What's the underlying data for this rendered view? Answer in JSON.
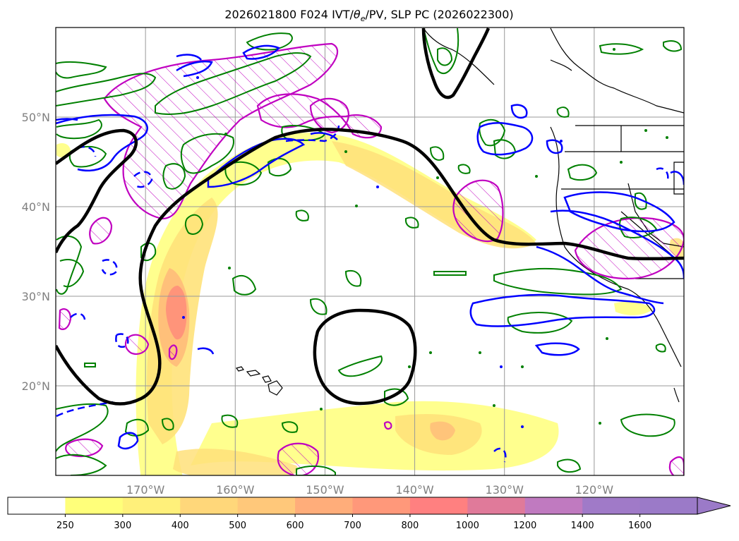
{
  "title_main": "2026021800 F024 IVT/",
  "title_theta": "θ",
  "title_sub": "e",
  "title_rest": "/PV, SLP PC (2026022300)",
  "lon_ticks": [
    {
      "lon": -170,
      "label": "170°W"
    },
    {
      "lon": -160,
      "label": "160°W"
    },
    {
      "lon": -150,
      "label": "150°W"
    },
    {
      "lon": -140,
      "label": "140°W"
    },
    {
      "lon": -130,
      "label": "130°W"
    },
    {
      "lon": -120,
      "label": "120°W"
    }
  ],
  "lat_ticks": [
    {
      "lat": 50,
      "label": "50°N"
    },
    {
      "lat": 40,
      "label": "40°N"
    },
    {
      "lat": 30,
      "label": "30°N"
    },
    {
      "lat": 20,
      "label": "20°N"
    }
  ],
  "extent": {
    "lon_min": -180,
    "lon_max": -110,
    "lat_min": 10,
    "lat_max": 60
  },
  "colorbar": {
    "levels": [
      "250",
      "300",
      "400",
      "500",
      "600",
      "700",
      "800",
      "1000",
      "1200",
      "1400",
      "1600"
    ],
    "colors": [
      "#ffffff",
      "#ffff7a",
      "#fff07a",
      "#ffd77a",
      "#ffc87a",
      "#ffad7a",
      "#ff987a",
      "#ff8080",
      "#e07a9a",
      "#c07ac0",
      "#a07ac8",
      "#9b7ac8"
    ]
  },
  "colors": {
    "slp_contour": "#000000",
    "pv_contour": "#0000ff",
    "theta_contour": "#008000",
    "ivt_hatch": "#c000c0"
  }
}
